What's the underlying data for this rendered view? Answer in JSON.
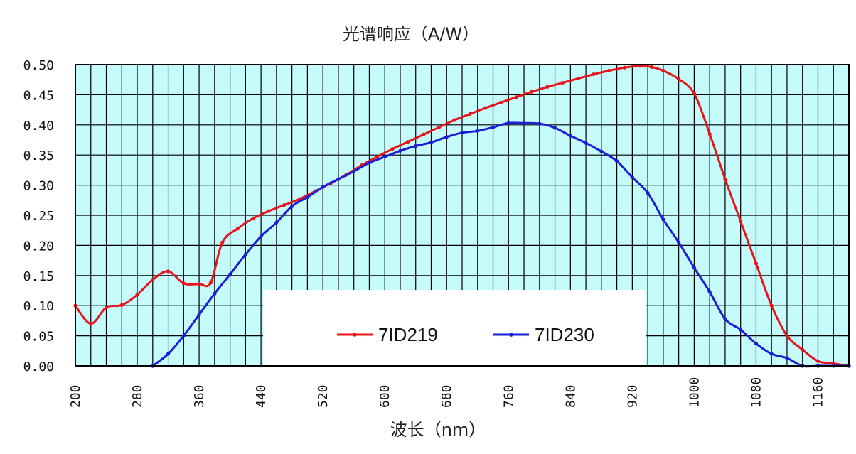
{
  "chart_data": {
    "type": "line",
    "title": "光谱响应（A/W）",
    "xlabel": "波长（nm）",
    "ylabel": "",
    "xlim": [
      200,
      1200
    ],
    "ylim": [
      0,
      0.5
    ],
    "x_ticks": [
      200,
      280,
      360,
      440,
      520,
      600,
      680,
      760,
      840,
      920,
      1000,
      1080,
      1160
    ],
    "y_ticks": [
      0.0,
      0.05,
      0.1,
      0.15,
      0.2,
      0.25,
      0.3,
      0.35,
      0.4,
      0.45,
      0.5
    ],
    "x_tick_labels": [
      "200",
      "280",
      "360",
      "440",
      "520",
      "600",
      "680",
      "760",
      "840",
      "920",
      "1000",
      "1080",
      "1160"
    ],
    "y_tick_labels": [
      "0.00",
      "0.05",
      "0.10",
      "0.15",
      "0.20",
      "0.25",
      "0.30",
      "0.35",
      "0.40",
      "0.45",
      "0.50"
    ],
    "grid": true,
    "legend_position": "bottom-center",
    "series": [
      {
        "name": "7ID219",
        "color": "#e8141b",
        "x": [
          200,
          220,
          240,
          260,
          280,
          300,
          320,
          340,
          360,
          375,
          390,
          410,
          430,
          450,
          470,
          490,
          510,
          530,
          550,
          570,
          590,
          610,
          630,
          650,
          670,
          690,
          710,
          730,
          750,
          770,
          790,
          810,
          830,
          850,
          870,
          890,
          910,
          930,
          945,
          960,
          980,
          1000,
          1020,
          1040,
          1060,
          1080,
          1100,
          1120,
          1140,
          1160,
          1180,
          1200
        ],
        "y": [
          0.1,
          0.07,
          0.097,
          0.101,
          0.118,
          0.143,
          0.157,
          0.137,
          0.136,
          0.138,
          0.205,
          0.228,
          0.245,
          0.257,
          0.267,
          0.277,
          0.29,
          0.303,
          0.317,
          0.333,
          0.347,
          0.36,
          0.372,
          0.384,
          0.396,
          0.408,
          0.418,
          0.428,
          0.437,
          0.446,
          0.455,
          0.463,
          0.47,
          0.477,
          0.484,
          0.49,
          0.495,
          0.498,
          0.496,
          0.49,
          0.476,
          0.452,
          0.385,
          0.31,
          0.24,
          0.17,
          0.1,
          0.05,
          0.027,
          0.008,
          0.004,
          0.0
        ]
      },
      {
        "name": "7ID230",
        "color": "#1a1ed6",
        "x": [
          300,
          320,
          340,
          360,
          380,
          400,
          420,
          440,
          460,
          480,
          500,
          520,
          540,
          560,
          580,
          600,
          620,
          640,
          660,
          680,
          700,
          720,
          740,
          760,
          780,
          800,
          820,
          840,
          860,
          880,
          900,
          920,
          940,
          960,
          980,
          1000,
          1020,
          1040,
          1060,
          1080,
          1100,
          1120,
          1140,
          1160,
          1180,
          1200
        ],
        "y": [
          0.0,
          0.02,
          0.05,
          0.085,
          0.12,
          0.152,
          0.185,
          0.215,
          0.238,
          0.265,
          0.28,
          0.297,
          0.31,
          0.323,
          0.337,
          0.347,
          0.357,
          0.365,
          0.371,
          0.38,
          0.387,
          0.39,
          0.396,
          0.403,
          0.403,
          0.402,
          0.395,
          0.382,
          0.37,
          0.356,
          0.34,
          0.313,
          0.287,
          0.243,
          0.205,
          0.163,
          0.123,
          0.078,
          0.06,
          0.037,
          0.02,
          0.013,
          0.0,
          0.0,
          0.0,
          0.0
        ]
      }
    ]
  }
}
